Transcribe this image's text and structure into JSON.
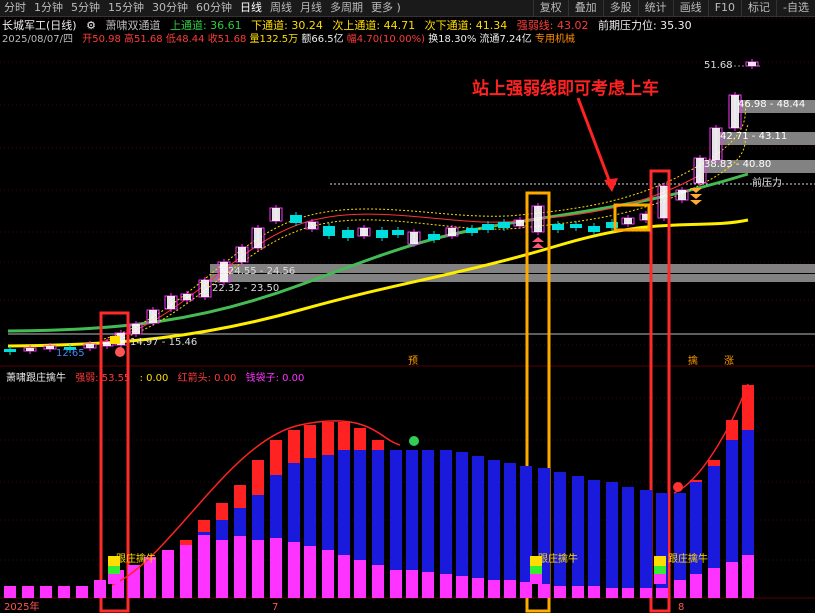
{
  "toolbar": {
    "left": [
      "分时",
      "1分钟",
      "5分钟",
      "15分钟",
      "30分钟",
      "60分钟",
      "日线",
      "周线",
      "月线",
      "多周期",
      "更多 )"
    ],
    "active": "日线",
    "right": [
      "复权",
      "叠加",
      "多股",
      "统计",
      "画线",
      "F10",
      "标记",
      "-自选"
    ]
  },
  "header": {
    "stock": "长城军工(日线)",
    "indicator": "萧啸双通道",
    "up_channel": "上通道: 36.61",
    "down_channel": "下通道: 30.24",
    "sub_up": "次上通道: 44.71",
    "sub_down": "次下通道: 41.34",
    "strong_weak": "强弱线: 43.02",
    "prev_resist": "前期压力位: 35.30"
  },
  "quote": {
    "date": "2025/08/07/四",
    "open": "开50.98",
    "high": "高51.68",
    "low": "低48.44",
    "close": "收51.68",
    "volume": "量132.5万",
    "amount": "额66.5亿",
    "change": "幅4.70(10.00%)",
    "turnover": "换18.30%",
    "float": "流通7.24亿",
    "sector": "专用机械"
  },
  "annotation": "站上强弱线即可考虑上车",
  "price_labels": {
    "p51": "51.68",
    "r1": "46.98 - 48.44",
    "r2": "42.71 - 43.11",
    "r3": "38.83 - 40.80",
    "prev": "前压力",
    "l1": "24.55 - 24.56",
    "l2": "22.32 - 23.50",
    "l3": "14.97 - 15.46",
    "low": "12.65"
  },
  "markers": {
    "yu": "预",
    "qin": "擒",
    "zhang": "涨"
  },
  "sub": {
    "name": "萧啸跟庄擒牛",
    "strong": "强弱: 53.55",
    "v2": ": 0.00",
    "red_arrow": "红箭头: 0.00",
    "money": "钱袋子: 0.00",
    "qn_label": "跟庄擒牛"
  },
  "xaxis": {
    "a": "2025年",
    "b": "7",
    "c": "8"
  },
  "colors": {
    "up": "#ff33ff",
    "down": "#00dddd",
    "red": "#ff2222",
    "blue": "#1a1adc",
    "frame": "#ff2a2a",
    "frame2": "#ffaa00"
  }
}
